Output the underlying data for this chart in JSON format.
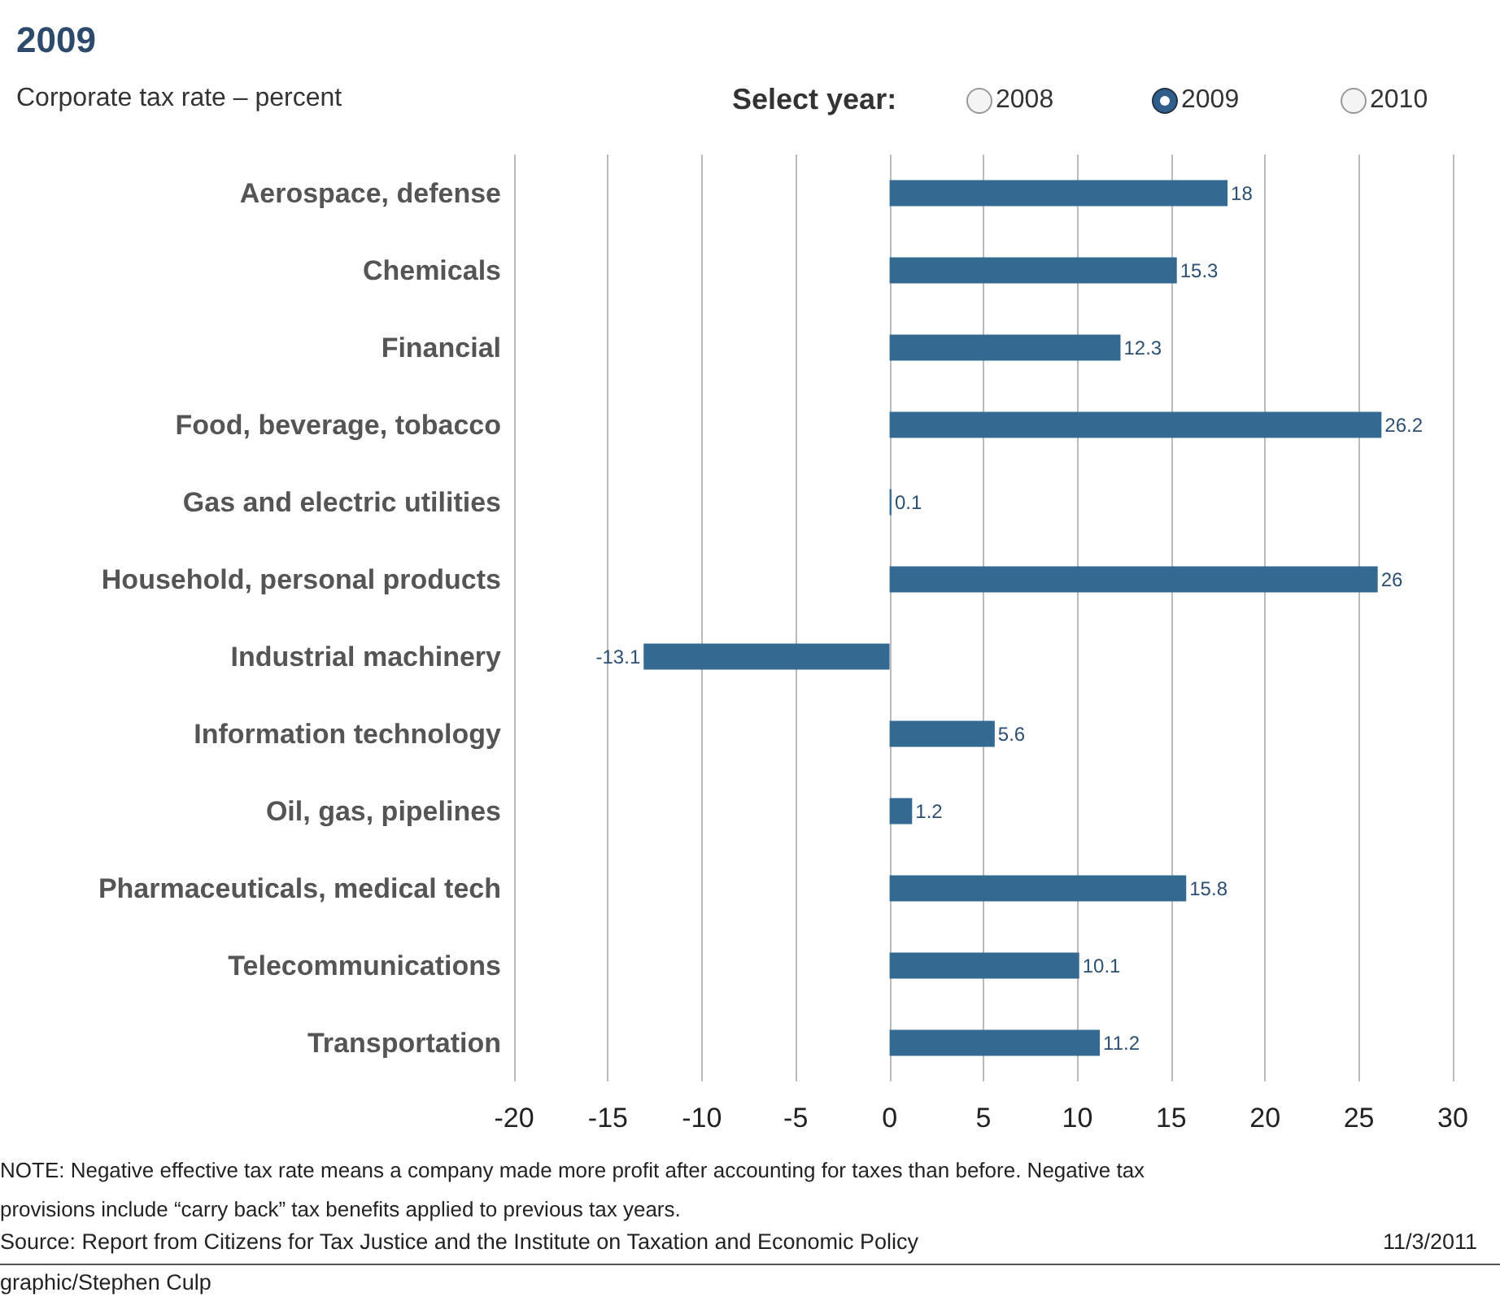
{
  "chart_data": {
    "type": "bar",
    "orientation": "horizontal",
    "title": "2009",
    "subtitle": "Corporate tax rate – percent",
    "categories": [
      "Aerospace, defense",
      "Chemicals",
      "Financial",
      "Food, beverage, tobacco",
      "Gas and electric utilities",
      "Household, personal products",
      "Industrial machinery",
      "Information technology",
      "Oil, gas, pipelines",
      "Pharmaceuticals, medical tech",
      "Telecommunications",
      "Transportation"
    ],
    "values": [
      18,
      15.3,
      12.3,
      26.2,
      0.1,
      26,
      -13.1,
      5.6,
      1.2,
      15.8,
      10.1,
      11.2
    ],
    "color": "#346a91",
    "data_labels": true,
    "xlim": [
      -20,
      30
    ],
    "xticks": [
      -20,
      -15,
      -10,
      -5,
      0,
      5,
      10,
      15,
      20,
      25,
      30
    ],
    "grid": "x",
    "annotations": [
      "Select year:",
      "2008",
      "2009",
      "2010",
      "NOTE: Negative effective tax rate means a company made more profit after accounting for taxes than before. Negative tax provisions include “carry back” tax benefits applied to previous tax years.",
      "Source: Report from Citizens for Tax Justice and the Institute on Taxation and Economic Policy",
      "11/3/2011",
      "graphic/Stephen Culp"
    ]
  }
}
